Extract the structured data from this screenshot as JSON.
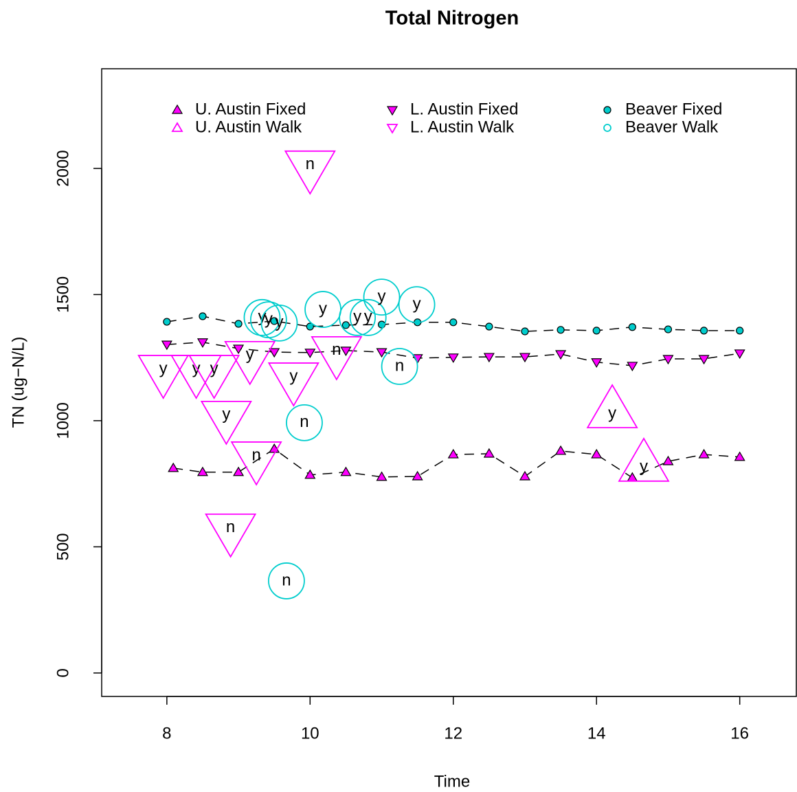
{
  "chart_data": {
    "type": "scatter",
    "title": "Total Nitrogen",
    "x_label": "Time",
    "y_label": "TN (ug−N/L)",
    "xlim": [
      7.09,
      16.79
    ],
    "ylim": [
      -93,
      2395
    ],
    "xticks": [
      8,
      10,
      12,
      14,
      16
    ],
    "yticks": [
      0,
      500,
      1000,
      1500,
      2000
    ],
    "series": [
      {
        "name": "U. Austin Fixed",
        "color": "#ff00ff",
        "marker": "triangle-up",
        "filled": true,
        "line": "dashed",
        "x": [
          8.09,
          8.5,
          9,
          9.5,
          10,
          10.5,
          11,
          11.5,
          12,
          12.5,
          13,
          13.5,
          14,
          14.5,
          15,
          15.5,
          16
        ],
        "values": [
          812,
          796,
          796,
          888,
          785,
          796,
          777,
          779,
          866,
          869,
          779,
          880,
          866,
          774,
          839,
          866,
          856
        ]
      },
      {
        "name": "L. Austin Fixed",
        "color": "#ff00ff",
        "marker": "triangle-down",
        "filled": true,
        "line": "dashed",
        "x": [
          8,
          8.5,
          9,
          9.5,
          10,
          10.5,
          11,
          11.5,
          12,
          12.5,
          13,
          13.5,
          14,
          14.5,
          15,
          15.5,
          16
        ],
        "values": [
          1302,
          1311,
          1286,
          1272,
          1270,
          1278,
          1272,
          1248,
          1251,
          1253,
          1253,
          1264,
          1232,
          1218,
          1245,
          1245,
          1267
        ]
      },
      {
        "name": "Beaver Fixed",
        "color": "#00cdcd",
        "marker": "circle",
        "filled": true,
        "line": "dashed",
        "x": [
          8,
          8.5,
          9,
          9.5,
          10,
          10.5,
          11,
          11.5,
          12,
          12.5,
          13,
          13.5,
          14,
          14.5,
          15,
          15.5,
          16
        ],
        "values": [
          1392,
          1414,
          1384,
          1395,
          1373,
          1379,
          1381,
          1390,
          1390,
          1373,
          1354,
          1360,
          1357,
          1371,
          1362,
          1357,
          1357
        ]
      },
      {
        "name": "U. Austin Walk",
        "color": "#ff00ff",
        "marker": "triangle-up",
        "filled": false,
        "x": [
          14.22,
          14.66
        ],
        "values": [
          1027,
          815
        ],
        "labels": [
          "y",
          "y"
        ]
      },
      {
        "name": "L. Austin Walk",
        "color": "#ff00ff",
        "marker": "triangle-down",
        "filled": false,
        "x": [
          7.95,
          8.41,
          8.66,
          9.16,
          9.77,
          8.83,
          9.25,
          10,
          8.89,
          10.37
        ],
        "values": [
          1204,
          1204,
          1204,
          1259,
          1174,
          1022,
          861,
          2014,
          575,
          1278
        ],
        "labels": [
          "y",
          "y",
          "y",
          "y",
          "y",
          "y",
          "n",
          "n",
          "n",
          "n"
        ]
      },
      {
        "name": "Beaver Walk",
        "color": "#00cdcd",
        "marker": "circle",
        "filled": false,
        "x": [
          9.33,
          9.42,
          9.57,
          10.18,
          10.66,
          10.81,
          11.0,
          11.49,
          11.25,
          9.92,
          9.67
        ],
        "values": [
          1409,
          1400,
          1387,
          1441,
          1409,
          1409,
          1490,
          1460,
          1215,
          992,
          365
        ],
        "labels": [
          "y",
          "y",
          "y",
          "y",
          "y",
          "y",
          "y",
          "y",
          "n",
          "n",
          "n"
        ]
      }
    ]
  }
}
